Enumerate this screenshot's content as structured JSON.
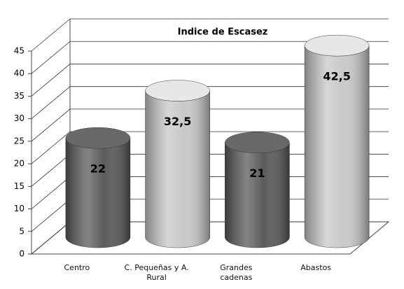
{
  "chart_data": {
    "type": "bar3d",
    "title": "Indice de Escasez",
    "categories": [
      "Centro",
      "C. Pequeñas y A. Rural",
      "Grandes cadenas",
      "Abastos"
    ],
    "values": [
      22,
      32.5,
      21,
      42.5
    ],
    "value_labels": [
      "22",
      "32,5",
      "21",
      "42,5"
    ],
    "colors": [
      "#5b5b5b",
      "#c9c9c9",
      "#5b5b5b",
      "#c9c9c9"
    ],
    "ylim": [
      0,
      45
    ],
    "yticks": [
      0,
      5,
      10,
      15,
      20,
      25,
      30,
      35,
      40,
      45
    ],
    "grid": true
  }
}
